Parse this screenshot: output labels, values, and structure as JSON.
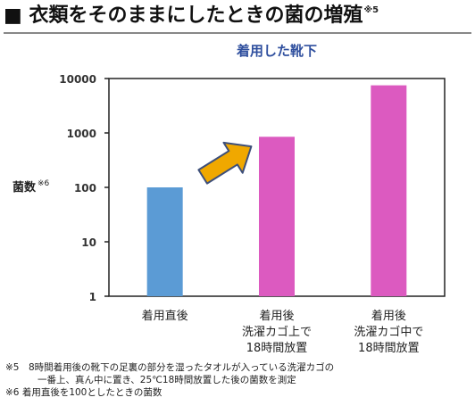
{
  "heading": {
    "title": "■ 衣類をそのままにしたときの菌の増殖",
    "footnote_mark": "※5"
  },
  "colors": {
    "bar_blue": "#5b9bd5",
    "bar_magenta": "#dc5ac0",
    "arrow_fill": "#f0a800",
    "arrow_stroke": "#3d4f7a",
    "title_blue": "#2f4f9e"
  },
  "arrow": {
    "icon": "up-right-arrow-icon"
  },
  "chart_data": {
    "type": "bar",
    "title": "着用した靴下",
    "ylabel": "菌数",
    "ylabel_mark": "※6",
    "yscale": "log",
    "ylim": [
      1,
      10000
    ],
    "yticks": [
      "1",
      "10",
      "100",
      "1000",
      "10000"
    ],
    "categories": [
      [
        "着用直後"
      ],
      [
        "着用後",
        "洗濯カゴ上で",
        "18時間放置"
      ],
      [
        "着用後",
        "洗濯カゴ中で",
        "18時間放置"
      ]
    ],
    "values": [
      100,
      850,
      7500
    ],
    "grid": false,
    "legend": "none"
  },
  "notes": [
    "※5　8時間着用後の靴下の足裏の部分を湿ったタオルが入っている洗濯カゴの",
    "一番上、真ん中に置き、25℃18時間放置した後の菌数を測定",
    "※6 着用直後を100としたときの菌数"
  ]
}
